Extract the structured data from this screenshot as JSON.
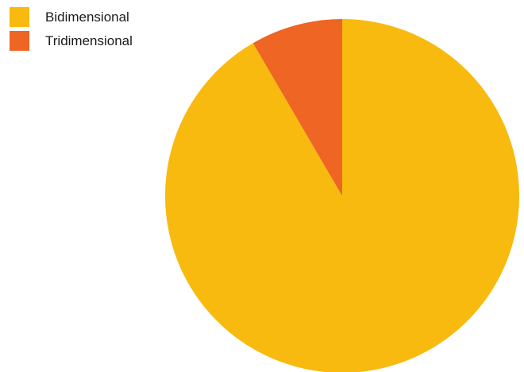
{
  "chart_data": {
    "type": "pie",
    "title": "",
    "start_angle_deg": 0,
    "direction": "clockwise",
    "legend_position": "top-left",
    "slices": [
      {
        "label": "Bidimensional",
        "value": 91.6,
        "color": "#F8BA0E"
      },
      {
        "label": "Tridimensional",
        "value": 8.4,
        "color": "#EE6524"
      }
    ]
  }
}
